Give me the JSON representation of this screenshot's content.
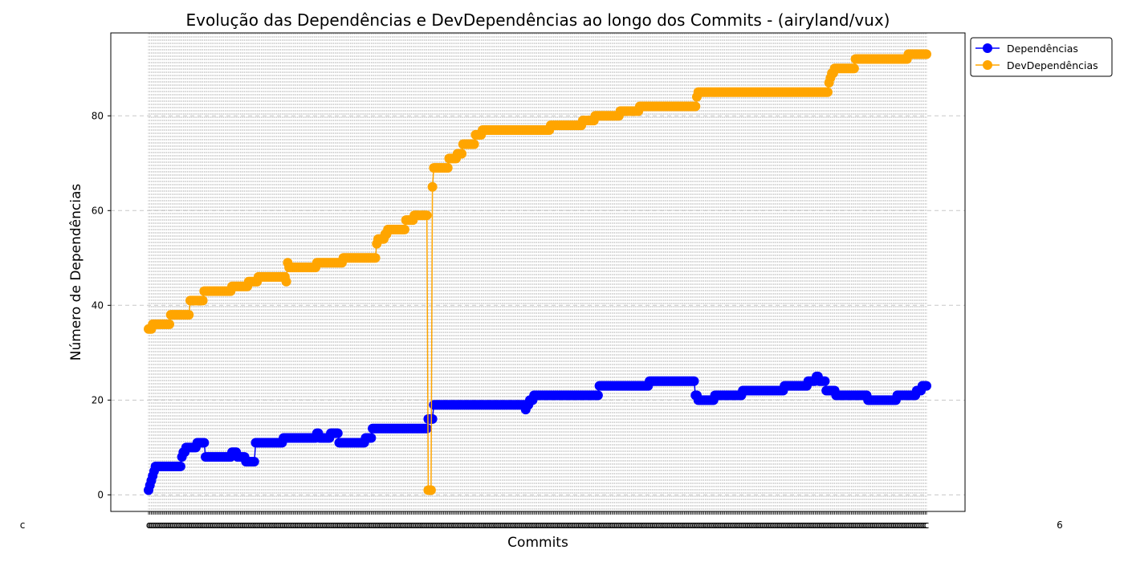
{
  "chart_data": {
    "type": "line",
    "title": "Evolução das Dependências e DevDependências ao longo dos Commits - (airyland/vux)",
    "xlabel": "Commits",
    "ylabel": "Número de Dependências",
    "ylim": [
      -3.5,
      97.5
    ],
    "yticks": [
      0,
      20,
      40,
      60,
      80
    ],
    "grid": true,
    "legend_position": "outside-top-right",
    "n_commits": 560,
    "x_tick_text": "c",
    "x_first_label": "c",
    "x_last_label": "6",
    "series": [
      {
        "name": "Dependências",
        "color": "#0000ff",
        "segments": [
          [
            0,
            1
          ],
          [
            1,
            2
          ],
          [
            2,
            3
          ],
          [
            3,
            4
          ],
          [
            4,
            5
          ],
          [
            6,
            6
          ],
          [
            23,
            6
          ],
          [
            24,
            8
          ],
          [
            26,
            9
          ],
          [
            28,
            10
          ],
          [
            33,
            10
          ],
          [
            34,
            10
          ],
          [
            35,
            11
          ],
          [
            40,
            11
          ],
          [
            41,
            8
          ],
          [
            59,
            8
          ],
          [
            60,
            9
          ],
          [
            63,
            9
          ],
          [
            64,
            8
          ],
          [
            69,
            8
          ],
          [
            70,
            7
          ],
          [
            76,
            7
          ],
          [
            77,
            11
          ],
          [
            96,
            11
          ],
          [
            97,
            12
          ],
          [
            120,
            12
          ],
          [
            121,
            13
          ],
          [
            123,
            12
          ],
          [
            130,
            12
          ],
          [
            131,
            13
          ],
          [
            136,
            13
          ],
          [
            137,
            11
          ],
          [
            155,
            11
          ],
          [
            156,
            12
          ],
          [
            160,
            12
          ],
          [
            161,
            14
          ],
          [
            200,
            14
          ],
          [
            201,
            16
          ],
          [
            204,
            16
          ],
          [
            205,
            19
          ],
          [
            270,
            19
          ],
          [
            271,
            18
          ],
          [
            273,
            19
          ],
          [
            274,
            20
          ],
          [
            276,
            20
          ],
          [
            277,
            21
          ],
          [
            323,
            21
          ],
          [
            324,
            23
          ],
          [
            359,
            23
          ],
          [
            360,
            24
          ],
          [
            392,
            24
          ],
          [
            393,
            21
          ],
          [
            395,
            20
          ],
          [
            406,
            20
          ],
          [
            407,
            21
          ],
          [
            426,
            21
          ],
          [
            427,
            22
          ],
          [
            456,
            22
          ],
          [
            457,
            23
          ],
          [
            473,
            23
          ],
          [
            474,
            24
          ],
          [
            479,
            24
          ],
          [
            480,
            25
          ],
          [
            483,
            24
          ],
          [
            486,
            24
          ],
          [
            487,
            22
          ],
          [
            493,
            22
          ],
          [
            494,
            21
          ],
          [
            516,
            21
          ],
          [
            517,
            20
          ],
          [
            537,
            20
          ],
          [
            538,
            21
          ],
          [
            551,
            21
          ],
          [
            552,
            22
          ],
          [
            555,
            22
          ],
          [
            556,
            23
          ],
          [
            559,
            23
          ]
        ]
      },
      {
        "name": "DevDependências",
        "color": "#ffa500",
        "segments": [
          [
            0,
            35
          ],
          [
            2,
            35
          ],
          [
            3,
            36
          ],
          [
            15,
            36
          ],
          [
            16,
            38
          ],
          [
            29,
            38
          ],
          [
            30,
            41
          ],
          [
            39,
            41
          ],
          [
            40,
            43
          ],
          [
            59,
            43
          ],
          [
            60,
            44
          ],
          [
            71,
            44
          ],
          [
            72,
            45
          ],
          [
            78,
            45
          ],
          [
            79,
            46
          ],
          [
            98,
            46
          ],
          [
            99,
            45
          ],
          [
            100,
            49
          ],
          [
            101,
            48
          ],
          [
            120,
            48
          ],
          [
            121,
            49
          ],
          [
            139,
            49
          ],
          [
            140,
            50
          ],
          [
            163,
            50
          ],
          [
            164,
            53
          ],
          [
            165,
            54
          ],
          [
            169,
            54
          ],
          [
            170,
            55
          ],
          [
            171,
            55
          ],
          [
            172,
            56
          ],
          [
            184,
            56
          ],
          [
            185,
            58
          ],
          [
            190,
            58
          ],
          [
            191,
            59
          ],
          [
            200,
            59
          ],
          [
            201,
            1
          ],
          [
            203,
            1
          ],
          [
            204,
            65
          ],
          [
            205,
            69
          ],
          [
            215,
            69
          ],
          [
            216,
            71
          ],
          [
            221,
            71
          ],
          [
            222,
            72
          ],
          [
            225,
            72
          ],
          [
            226,
            74
          ],
          [
            234,
            74
          ],
          [
            235,
            76
          ],
          [
            239,
            76
          ],
          [
            240,
            77
          ],
          [
            288,
            77
          ],
          [
            289,
            78
          ],
          [
            311,
            78
          ],
          [
            312,
            79
          ],
          [
            320,
            79
          ],
          [
            321,
            80
          ],
          [
            338,
            80
          ],
          [
            339,
            81
          ],
          [
            352,
            81
          ],
          [
            353,
            82
          ],
          [
            393,
            82
          ],
          [
            394,
            84
          ],
          [
            395,
            85
          ],
          [
            488,
            85
          ],
          [
            489,
            87
          ],
          [
            490,
            88
          ],
          [
            492,
            89
          ],
          [
            493,
            90
          ],
          [
            507,
            90
          ],
          [
            508,
            92
          ],
          [
            545,
            92
          ],
          [
            546,
            93
          ],
          [
            559,
            93
          ]
        ]
      }
    ]
  }
}
